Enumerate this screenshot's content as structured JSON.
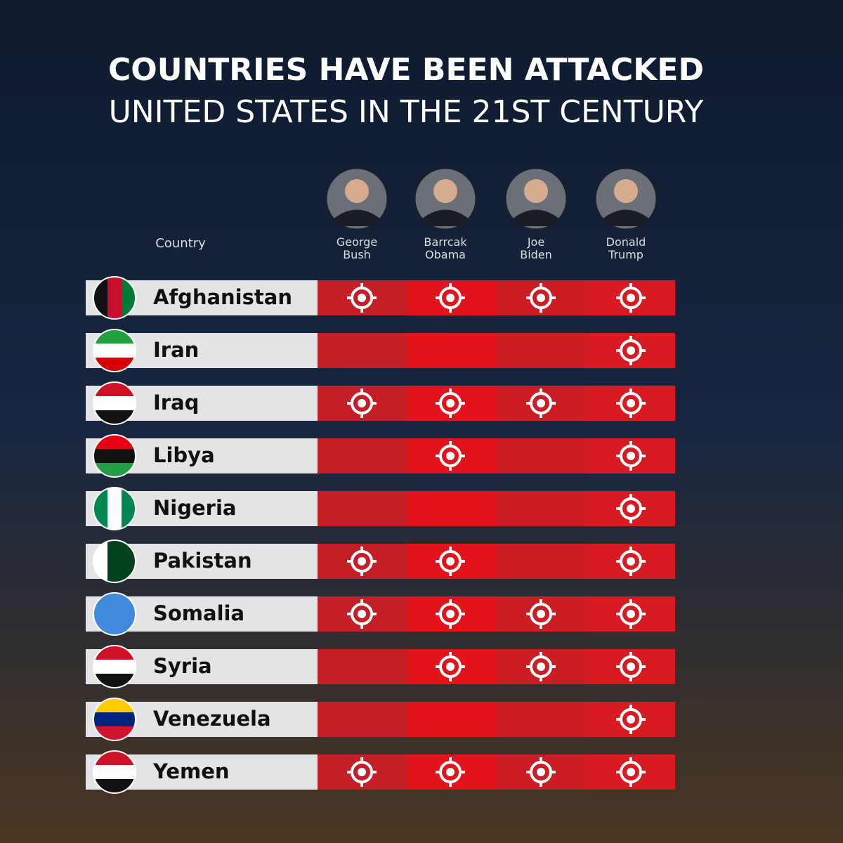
{
  "header": {
    "title": "COUNTRIES HAVE BEEN ATTACKED",
    "subtitle": "UNITED STATES IN THE 21ST CENTURY"
  },
  "table": {
    "country_header": "Country",
    "presidents": [
      "George Bush",
      "Barrcak Obama",
      "Joe Biden",
      "Donald Trump"
    ],
    "rows": [
      {
        "country": "Afghanistan",
        "attacked": [
          true,
          true,
          true,
          true
        ]
      },
      {
        "country": "Iran",
        "attacked": [
          false,
          false,
          false,
          true
        ]
      },
      {
        "country": "Iraq",
        "attacked": [
          true,
          true,
          true,
          true
        ]
      },
      {
        "country": "Libya",
        "attacked": [
          false,
          true,
          false,
          true
        ]
      },
      {
        "country": "Nigeria",
        "attacked": [
          false,
          false,
          false,
          true
        ]
      },
      {
        "country": "Pakistan",
        "attacked": [
          true,
          true,
          false,
          true
        ]
      },
      {
        "country": "Somalia",
        "attacked": [
          true,
          true,
          true,
          true
        ]
      },
      {
        "country": "Syria",
        "attacked": [
          false,
          true,
          true,
          true
        ]
      },
      {
        "country": "Venezuela",
        "attacked": [
          false,
          false,
          false,
          true
        ]
      },
      {
        "country": "Yemen",
        "attacked": [
          true,
          true,
          true,
          true
        ]
      }
    ]
  }
}
